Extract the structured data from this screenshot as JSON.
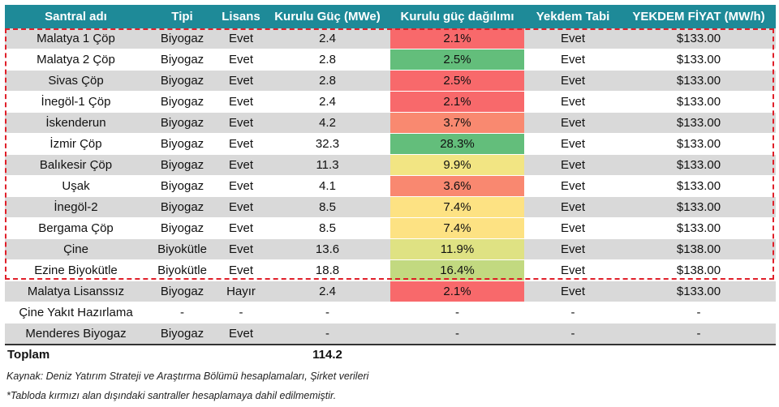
{
  "table": {
    "headers": [
      "Santral adı",
      "Tipi",
      "Lisans",
      "Kurulu Güç (MWe)",
      "Kurulu güç dağılımı",
      "Yekdem Tabi",
      "YEKDEM FİYAT (MW/h)"
    ],
    "rows": [
      {
        "name": "Malatya 1 Çöp",
        "type": "Biyogaz",
        "license": "Evet",
        "power": "2.4",
        "share": "2.1%",
        "yekdem": "Evet",
        "price": "$133.00",
        "share_color": "#f8696b"
      },
      {
        "name": "Malatya 2 Çöp",
        "type": "Biyogaz",
        "license": "Evet",
        "power": "2.8",
        "share": "2.5%",
        "yekdem": "Evet",
        "price": "$133.00",
        "share_color": "#63be7b"
      },
      {
        "name": "Sivas Çöp",
        "type": "Biyogaz",
        "license": "Evet",
        "power": "2.8",
        "share": "2.5%",
        "yekdem": "Evet",
        "price": "$133.00",
        "share_color": "#f8696b"
      },
      {
        "name": "İnegöl-1 Çöp",
        "type": "Biyogaz",
        "license": "Evet",
        "power": "2.4",
        "share": "2.1%",
        "yekdem": "Evet",
        "price": "$133.00",
        "share_color": "#f8696b"
      },
      {
        "name": "İskenderun",
        "type": "Biyogaz",
        "license": "Evet",
        "power": "4.2",
        "share": "3.7%",
        "yekdem": "Evet",
        "price": "$133.00",
        "share_color": "#f98970"
      },
      {
        "name": "İzmir Çöp",
        "type": "Biyogaz",
        "license": "Evet",
        "power": "32.3",
        "share": "28.3%",
        "yekdem": "Evet",
        "price": "$133.00",
        "share_color": "#63be7b"
      },
      {
        "name": "Balıkesir Çöp",
        "type": "Biyogaz",
        "license": "Evet",
        "power": "11.3",
        "share": "9.9%",
        "yekdem": "Evet",
        "price": "$133.00",
        "share_color": "#f2e583"
      },
      {
        "name": "Uşak",
        "type": "Biyogaz",
        "license": "Evet",
        "power": "4.1",
        "share": "3.6%",
        "yekdem": "Evet",
        "price": "$133.00",
        "share_color": "#f98870"
      },
      {
        "name": "İnegöl-2",
        "type": "Biyogaz",
        "license": "Evet",
        "power": "8.5",
        "share": "7.4%",
        "yekdem": "Evet",
        "price": "$133.00",
        "share_color": "#fde283"
      },
      {
        "name": "Bergama Çöp",
        "type": "Biyogaz",
        "license": "Evet",
        "power": "8.5",
        "share": "7.4%",
        "yekdem": "Evet",
        "price": "$133.00",
        "share_color": "#fde283"
      },
      {
        "name": "Çine",
        "type": "Biyokütle",
        "license": "Evet",
        "power": "13.6",
        "share": "11.9%",
        "yekdem": "Evet",
        "price": "$138.00",
        "share_color": "#dfe283"
      },
      {
        "name": "Ezine Biyokütle",
        "type": "Biyokütle",
        "license": "Evet",
        "power": "18.8",
        "share": "16.4%",
        "yekdem": "Evet",
        "price": "$138.00",
        "share_color": "#c2d980"
      },
      {
        "name": "Malatya Lisanssız",
        "type": "Biyogaz",
        "license": "Hayır",
        "power": "2.4",
        "share": "2.1%",
        "yekdem": "Evet",
        "price": "$133.00",
        "share_color": "#f8696b"
      },
      {
        "name": "Çine Yakıt Hazırlama",
        "type": "-",
        "license": "-",
        "power": "-",
        "share": "-",
        "yekdem": "-",
        "price": "-",
        "share_color": ""
      },
      {
        "name": "Menderes Biyogaz",
        "type": "Biyogaz",
        "license": "Evet",
        "power": "-",
        "share": "-",
        "yekdem": "-",
        "price": "-",
        "share_color": ""
      }
    ],
    "total_label": "Toplam",
    "total_power": "114.2"
  },
  "notes": {
    "source": "Kaynak: Deniz Yatırım Strateji ve Araştırma Bölümü hesaplamaları, Şirket verileri",
    "footnote": "*Tabloda kırmızı alan dışındaki santraller hesaplamaya dahil edilmemiştir."
  },
  "colors": {
    "header_bg": "#1e8a98",
    "row_alt_bg": "#d9d9d9",
    "highlight_border": "#e0202a"
  }
}
